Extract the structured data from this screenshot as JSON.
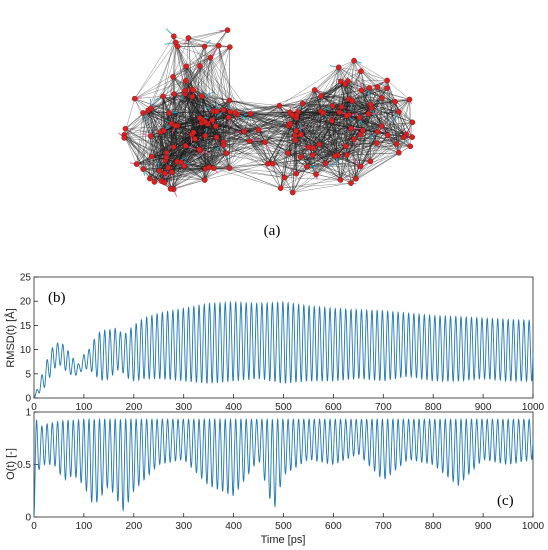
{
  "panels": {
    "a_label": "(a)",
    "b_label": "(b)",
    "c_label": "(c)"
  },
  "network": {
    "node_color": "#d62222",
    "edge_color": "#1a1a1a",
    "spike_color": "#2aa6c9"
  },
  "chart_data": [
    {
      "type": "line",
      "panel": "(b)",
      "xlabel": "",
      "ylabel": "RMSD(t) [Å]",
      "xlim": [
        0,
        1000
      ],
      "ylim": [
        0,
        25
      ],
      "x_ticks": [
        "0",
        "100",
        "200",
        "300",
        "400",
        "500",
        "600",
        "700",
        "800",
        "900",
        "1000"
      ],
      "y_ticks": [
        "0",
        "5",
        "10",
        "15",
        "20",
        "25"
      ],
      "grid": false,
      "line_color": "#1f77b4",
      "series": [
        {
          "x": [
            0,
            10,
            20,
            30,
            40,
            50,
            60,
            70,
            80,
            90,
            100,
            110,
            120,
            130,
            140,
            150,
            160,
            170,
            180,
            190,
            200,
            220,
            250,
            300,
            350,
            400,
            450,
            500,
            550,
            600,
            650,
            700,
            750,
            800,
            850,
            900,
            950,
            1000
          ],
          "upper": [
            0,
            3,
            6,
            9,
            11,
            11.5,
            11,
            9.5,
            8,
            7,
            9,
            10,
            12,
            13.5,
            14,
            14,
            14.5,
            14,
            13,
            14,
            15,
            16.5,
            17.5,
            18.5,
            19.5,
            19.8,
            19.5,
            19.8,
            19,
            18.5,
            18.2,
            18,
            17.5,
            17,
            16.8,
            16.5,
            16.2,
            16
          ],
          "lower": [
            0,
            1,
            2,
            4,
            6,
            7,
            6,
            5,
            4.5,
            5,
            6,
            6,
            5,
            4,
            3.5,
            4,
            5,
            6,
            5,
            4,
            3.5,
            4,
            4,
            3.5,
            3,
            3.5,
            4,
            3,
            3.5,
            3.5,
            4,
            3.5,
            4.5,
            3.5,
            3.5,
            4,
            3.5,
            3.5
          ]
        }
      ]
    },
    {
      "type": "line",
      "panel": "(c)",
      "xlabel": "Time [ps]",
      "ylabel": "O(t) [-]",
      "xlim": [
        0,
        1000
      ],
      "ylim": [
        0,
        1
      ],
      "x_ticks": [
        "0",
        "100",
        "200",
        "300",
        "400",
        "500",
        "600",
        "700",
        "800",
        "900",
        "1000"
      ],
      "y_ticks": [
        "0",
        "0.5",
        "1"
      ],
      "grid": false,
      "line_color": "#1f77b4",
      "series": [
        {
          "x": [
            0,
            10,
            20,
            40,
            60,
            80,
            100,
            120,
            150,
            180,
            200,
            250,
            300,
            350,
            400,
            450,
            480,
            500,
            550,
            600,
            650,
            700,
            750,
            800,
            850,
            900,
            950,
            1000
          ],
          "upper": [
            1.0,
            0.85,
            0.88,
            0.9,
            0.92,
            0.92,
            0.93,
            0.93,
            0.93,
            0.93,
            0.93,
            0.93,
            0.93,
            0.93,
            0.93,
            0.93,
            0.93,
            0.93,
            0.93,
            0.93,
            0.93,
            0.93,
            0.93,
            0.93,
            0.93,
            0.93,
            0.93,
            0.93
          ],
          "lower": [
            0.0,
            0.45,
            0.5,
            0.5,
            0.35,
            0.4,
            0.3,
            0.1,
            0.3,
            0.05,
            0.25,
            0.5,
            0.55,
            0.3,
            0.2,
            0.55,
            0.05,
            0.4,
            0.55,
            0.5,
            0.6,
            0.35,
            0.55,
            0.5,
            0.3,
            0.55,
            0.5,
            0.55
          ]
        }
      ]
    }
  ]
}
